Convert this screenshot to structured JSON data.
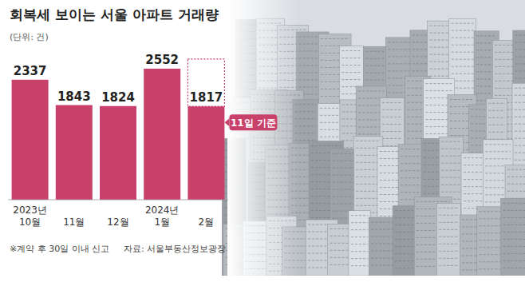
{
  "chart_data": {
    "type": "bar",
    "title": "회복세 보이는 서울 아파트 거래량",
    "subtitle": "(단위: 건)",
    "categories": [
      "2023년 10월",
      "11월",
      "12월",
      "2024년 1월",
      "2월"
    ],
    "values": [
      2337,
      1843,
      1824,
      2552,
      1817
    ],
    "color": "#c8416b",
    "ylim": [
      0,
      2800
    ],
    "tick_labels": "x",
    "data_labels": true,
    "annotations": [
      "11일 기준"
    ],
    "notes": [
      "※계약 후 30일 이내 신고",
      "자료: 서울부동산정보광장"
    ]
  }
}
